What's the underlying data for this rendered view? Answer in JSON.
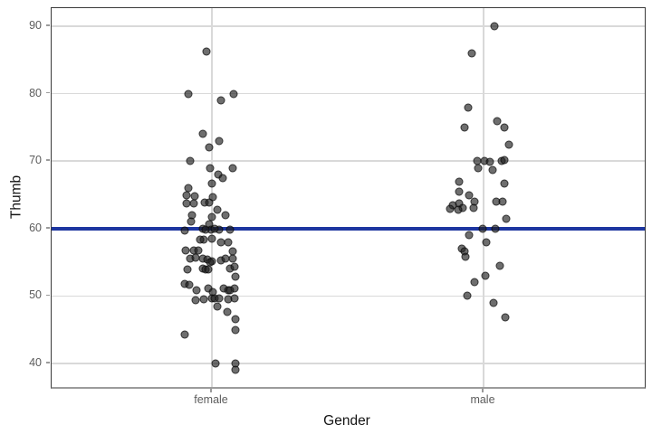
{
  "chart_data": {
    "type": "scatter",
    "subtype": "jitter-strip-plot",
    "title": "",
    "xlabel": "Gender",
    "ylabel": "Thumb",
    "categories": [
      "female",
      "male"
    ],
    "category_positions_pct": [
      0.271,
      0.729
    ],
    "y_ticks": [
      40,
      50,
      60,
      70,
      80,
      90
    ],
    "y_tick_labels": [
      "40",
      "50",
      "60",
      "70",
      "80",
      "90"
    ],
    "ylim": [
      36.5,
      92.7
    ],
    "grid": "horizontal-and-category-vertical",
    "legend": "none",
    "hline": {
      "y": 60
    },
    "series": [
      {
        "name": "female",
        "points": [
          [
            -5.6,
            86.3
          ],
          [
            -26,
            80
          ],
          [
            10,
            79
          ],
          [
            24.4,
            80
          ],
          [
            -10,
            74
          ],
          [
            8.4,
            73
          ],
          [
            -2.6,
            72
          ],
          [
            -24.3,
            70
          ],
          [
            -1.6,
            69
          ],
          [
            22.7,
            69
          ],
          [
            7.4,
            68
          ],
          [
            11.7,
            67.5
          ],
          [
            0.4,
            66.7
          ],
          [
            -26,
            66
          ],
          [
            -28.3,
            65
          ],
          [
            -19,
            64.8
          ],
          [
            1,
            64.7
          ],
          [
            -28.3,
            63.7
          ],
          [
            -20,
            63.7
          ],
          [
            -8.3,
            63.8
          ],
          [
            -2.6,
            63.9
          ],
          [
            6,
            62.8
          ],
          [
            -21.6,
            62
          ],
          [
            15,
            62
          ],
          [
            -23.3,
            61
          ],
          [
            0,
            61.7
          ],
          [
            -3.3,
            60.7
          ],
          [
            -30,
            59.7
          ],
          [
            -10,
            60
          ],
          [
            -0.6,
            59.9
          ],
          [
            8.2,
            59.8
          ],
          [
            19.9,
            59.8
          ],
          [
            -7,
            59.9
          ],
          [
            2.7,
            60
          ],
          [
            -8.6,
            58.4
          ],
          [
            0,
            58.5
          ],
          [
            9.7,
            57.9
          ],
          [
            18,
            57.9
          ],
          [
            -13,
            58.3
          ],
          [
            -28.6,
            56.7
          ],
          [
            -20,
            56.8
          ],
          [
            -15,
            56.8
          ],
          [
            23,
            56.6
          ],
          [
            -23.6,
            55.5
          ],
          [
            -18.3,
            55.7
          ],
          [
            -10,
            55.6
          ],
          [
            9.7,
            55.3
          ],
          [
            23,
            55.5
          ],
          [
            -5.3,
            55.4
          ],
          [
            -0.3,
            55.2
          ],
          [
            14.7,
            55.6
          ],
          [
            -2,
            55
          ],
          [
            -26.6,
            54
          ],
          [
            -10,
            54.1
          ],
          [
            19.6,
            54.1
          ],
          [
            24.6,
            54.4
          ],
          [
            -7,
            54
          ],
          [
            -4,
            53.9
          ],
          [
            26.4,
            52.8
          ],
          [
            -30,
            51.8
          ],
          [
            -25.3,
            51.6
          ],
          [
            -16.9,
            50.8
          ],
          [
            -3.6,
            51.1
          ],
          [
            1.4,
            50.6
          ],
          [
            13,
            51.1
          ],
          [
            18,
            50.8
          ],
          [
            24.6,
            51.1
          ],
          [
            20,
            50.9
          ],
          [
            -18.3,
            49.4
          ],
          [
            -9,
            49.5
          ],
          [
            0,
            49.7
          ],
          [
            2.7,
            49.6
          ],
          [
            8.4,
            49.6
          ],
          [
            18,
            49.5
          ],
          [
            24.6,
            49.6
          ],
          [
            5.9,
            48.4
          ],
          [
            17.4,
            47.6
          ],
          [
            26.4,
            46.6
          ],
          [
            25.9,
            45
          ],
          [
            -29.6,
            44.3
          ],
          [
            3.9,
            40
          ],
          [
            25.9,
            40
          ],
          [
            26.4,
            39
          ]
        ]
      },
      {
        "name": "male",
        "points": [
          [
            11.7,
            90
          ],
          [
            -12.6,
            86
          ],
          [
            -17.3,
            78
          ],
          [
            15,
            76
          ],
          [
            23.4,
            75
          ],
          [
            -20.6,
            75
          ],
          [
            27.7,
            72.5
          ],
          [
            -7.3,
            70
          ],
          [
            1,
            70
          ],
          [
            6.7,
            69.9
          ],
          [
            20,
            70
          ],
          [
            23.2,
            70.1
          ],
          [
            -5.6,
            69
          ],
          [
            10,
            68.7
          ],
          [
            -27.3,
            67
          ],
          [
            22.7,
            66.7
          ],
          [
            -26.6,
            65.5
          ],
          [
            -15.6,
            65
          ],
          [
            -10,
            64
          ],
          [
            14,
            64
          ],
          [
            21,
            64
          ],
          [
            -34,
            63.4
          ],
          [
            -27.3,
            63.7
          ],
          [
            -23.3,
            63.1
          ],
          [
            -36.6,
            62.9
          ],
          [
            -28.3,
            62.8
          ],
          [
            -10.6,
            63.1
          ],
          [
            25,
            61.5
          ],
          [
            -0.6,
            60
          ],
          [
            13.4,
            60
          ],
          [
            -15.6,
            59
          ],
          [
            3.4,
            58
          ],
          [
            -24,
            57
          ],
          [
            -21.3,
            56.6
          ],
          [
            -20,
            55.8
          ],
          [
            18.4,
            54.5
          ],
          [
            1.7,
            53
          ],
          [
            -10,
            52
          ],
          [
            -18.3,
            50
          ],
          [
            11,
            49
          ],
          [
            24.4,
            46.8
          ]
        ]
      }
    ],
    "colors": {
      "hline_blue": "#1d36a0",
      "point_fill": "rgba(33,33,33,0.65)",
      "point_stroke": "rgba(0,0,0,0.55)",
      "gridline": "#d9d9d9",
      "panel_border": "#3a3a3a",
      "axis_line_bottom": "#9b9b9b",
      "tick_label": "#5c5c5c",
      "axis_title": "#141414"
    },
    "point_radius_px": 4.5
  }
}
